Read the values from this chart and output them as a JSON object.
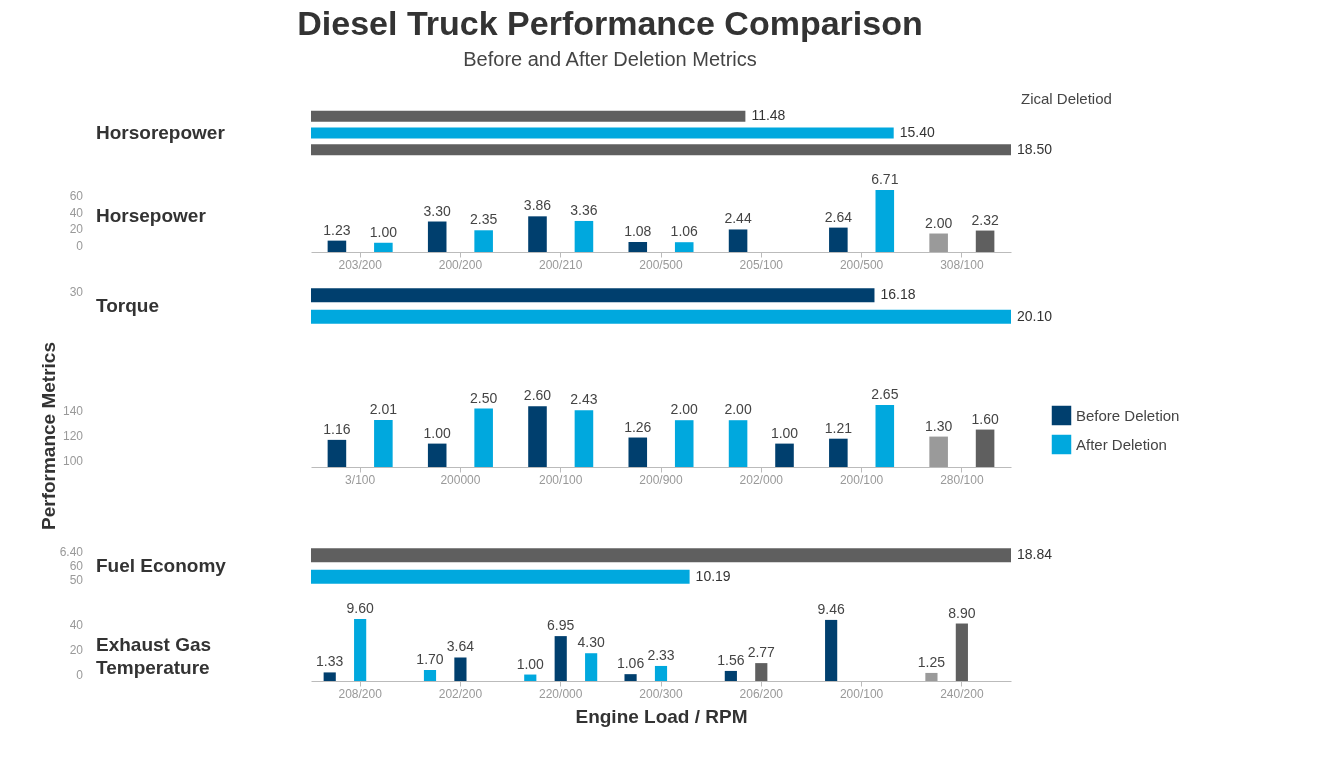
{
  "chart_data": [
    {
      "type": "bar",
      "orientation": "horizontal",
      "title": "Diesel Truck Performance Comparison",
      "subtitle": "Before and After Deletion Metrics",
      "annotations": [
        "Horsorepower",
        "Zical Deletiod"
      ],
      "categories": [
        null,
        null,
        null
      ],
      "values": [
        11.48,
        15.4,
        18.5
      ],
      "colors": [
        "#5f5f5f",
        "#00a8de",
        "#5f5f5f"
      ],
      "value_labels": [
        "11.48",
        "15.40",
        "18.50"
      ]
    },
    {
      "type": "bar",
      "title": "Horsepower",
      "annotations": [
        "60",
        "40",
        "20",
        "0"
      ],
      "categories": [
        "203/200",
        "200/200",
        "200/210",
        "200/500",
        "205/100",
        "200/500",
        "308/100"
      ],
      "series": [
        {
          "color": "#003f6e",
          "colors": [
            null,
            null,
            null,
            null,
            null,
            null,
            "#9a9a9a"
          ],
          "values": [
            1.23,
            3.3,
            3.86,
            1.08,
            2.44,
            2.64,
            2.0
          ],
          "value_labels": [
            "1.23",
            "3.30",
            "3.86",
            "1.08",
            "2.44",
            "2.64",
            "2.00"
          ]
        },
        {
          "color": "#00a8de",
          "colors": [
            null,
            null,
            null,
            null,
            null,
            null,
            "#5f5f5f"
          ],
          "values": [
            1.0,
            2.35,
            3.36,
            1.06,
            null,
            6.71,
            2.32
          ],
          "value_labels": [
            "1.00",
            "2.35",
            "3.36",
            "1.06",
            null,
            "6.71",
            "2.32"
          ]
        }
      ]
    },
    {
      "type": "bar",
      "orientation": "horizontal",
      "annotations": [
        "Torque",
        "30"
      ],
      "categories": [
        null,
        null
      ],
      "values": [
        16.18,
        20.1
      ],
      "colors": [
        "#003f6e",
        "#00a8de"
      ],
      "value_labels": [
        "16.18",
        "20.10"
      ]
    },
    {
      "type": "bar",
      "ylabel": "Performance Metrics",
      "legend": "right",
      "annotations": [
        "140",
        "120",
        "100"
      ],
      "categories": [
        "3/100",
        "200000",
        "200/100",
        "200/900",
        "202/000",
        "200/100",
        "280/100"
      ],
      "series": [
        {
          "name": "Before Deletion",
          "color": "#003f6e",
          "colors": [
            null,
            null,
            null,
            null,
            "#00a8de",
            null,
            "#9a9a9a"
          ],
          "values": [
            1.16,
            1.0,
            2.6,
            1.26,
            2.0,
            1.21,
            1.3
          ],
          "value_labels": [
            "1.16",
            "1.00",
            "2.60",
            "1.26",
            "2.00",
            "1.21",
            "1.30"
          ]
        },
        {
          "name": "After Deletion",
          "color": "#00a8de",
          "colors": [
            null,
            null,
            null,
            null,
            "#003f6e",
            null,
            "#5f5f5f"
          ],
          "values": [
            2.01,
            2.5,
            2.43,
            2.0,
            1.0,
            2.65,
            1.6
          ],
          "value_labels": [
            "2.01",
            "2.50",
            "2.43",
            "2.00",
            "1.00",
            "2.65",
            "1.60"
          ]
        }
      ]
    },
    {
      "type": "bar",
      "orientation": "horizontal",
      "annotations": [
        "Fuel Economy",
        "6.40",
        "60",
        "50"
      ],
      "categories": [
        null,
        null
      ],
      "values": [
        18.84,
        10.19
      ],
      "colors": [
        "#5f5f5f",
        "#00a8de"
      ],
      "value_labels": [
        "18.84",
        "10.19"
      ]
    },
    {
      "type": "bar",
      "title": "Exhaust Gas Temperature",
      "xlabel": "Engine Load / RPM",
      "annotations": [
        "40",
        "20",
        "0"
      ],
      "categories": [
        "208/200",
        "202/200",
        "220/000",
        "200/300",
        "206/200",
        "200/100",
        "240/200"
      ],
      "series": [
        {
          "color": "#003f6e",
          "colors": [
            null,
            "#00a8de",
            "#00a8de",
            null,
            null,
            null,
            "#9a9a9a"
          ],
          "values": [
            1.33,
            1.7,
            1.0,
            1.06,
            1.56,
            9.46,
            1.25
          ],
          "value_labels": [
            "1.33",
            "1.70",
            "1.00",
            "1.06",
            "1.56",
            "9.46",
            "1.25"
          ]
        },
        {
          "color": "#00a8de",
          "colors": [
            null,
            "#003f6e",
            "#003f6e",
            null,
            "#5f5f5f",
            null,
            "#5f5f5f"
          ],
          "values": [
            9.6,
            3.64,
            6.95,
            2.33,
            2.77,
            null,
            8.9
          ],
          "value_labels": [
            "9.60",
            "3.64",
            "6.95",
            "2.33",
            "2.77",
            null,
            "8.90"
          ]
        },
        {
          "color": "#00a8de",
          "values": [
            null,
            null,
            4.3,
            null,
            null,
            null,
            null
          ],
          "value_labels": [
            null,
            null,
            "4.30",
            null,
            null,
            null,
            null
          ]
        }
      ]
    }
  ]
}
